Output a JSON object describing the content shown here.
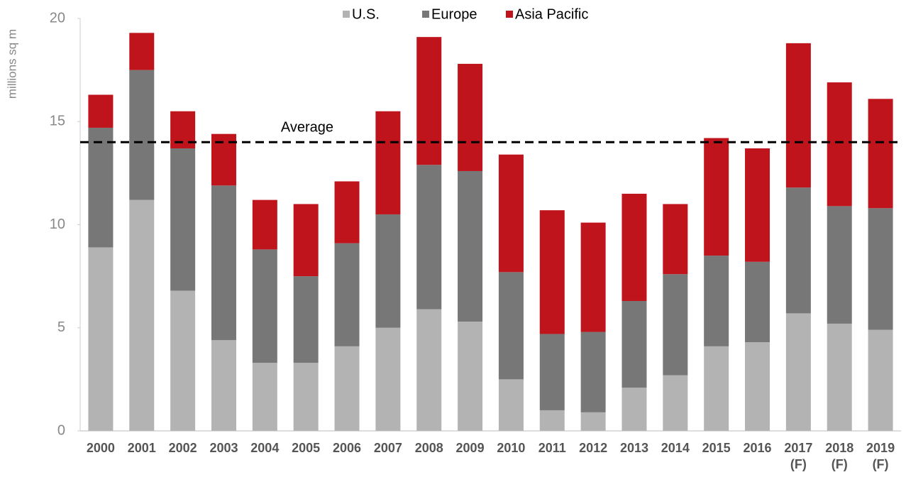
{
  "chart_data": {
    "type": "stacked-bar",
    "y_label": "millions sq m",
    "categories": [
      "2000",
      "2001",
      "2002",
      "2003",
      "2004",
      "2005",
      "2006",
      "2007",
      "2008",
      "2009",
      "2010",
      "2011",
      "2012",
      "2013",
      "2014",
      "2015",
      "2016",
      "2017 (F)",
      "2018 (F)",
      "2019 (F)"
    ],
    "series": [
      {
        "name": "U.S.",
        "color": "#b3b3b3",
        "values": [
          8.9,
          11.2,
          6.8,
          4.4,
          3.3,
          3.3,
          4.1,
          5.0,
          5.9,
          5.3,
          2.5,
          1.0,
          0.9,
          2.1,
          2.7,
          4.1,
          4.3,
          5.7,
          5.2,
          4.9
        ]
      },
      {
        "name": "Europe",
        "color": "#777777",
        "values": [
          5.8,
          6.3,
          6.9,
          7.5,
          5.5,
          4.2,
          5.0,
          5.5,
          7.0,
          7.3,
          5.2,
          3.7,
          3.9,
          4.2,
          4.9,
          4.4,
          3.9,
          6.1,
          5.7,
          5.9
        ]
      },
      {
        "name": "Asia Pacific",
        "color": "#c0141c",
        "values": [
          1.6,
          1.8,
          1.8,
          2.5,
          2.4,
          3.5,
          3.0,
          5.0,
          6.2,
          5.2,
          5.7,
          6.0,
          5.3,
          5.2,
          3.4,
          5.7,
          5.5,
          7.0,
          6.0,
          5.3
        ]
      }
    ],
    "average": {
      "label": "Average",
      "value": 14
    },
    "ylim": [
      0,
      20
    ],
    "yticks": [
      0,
      5,
      10,
      15,
      20
    ],
    "legend": "top"
  }
}
